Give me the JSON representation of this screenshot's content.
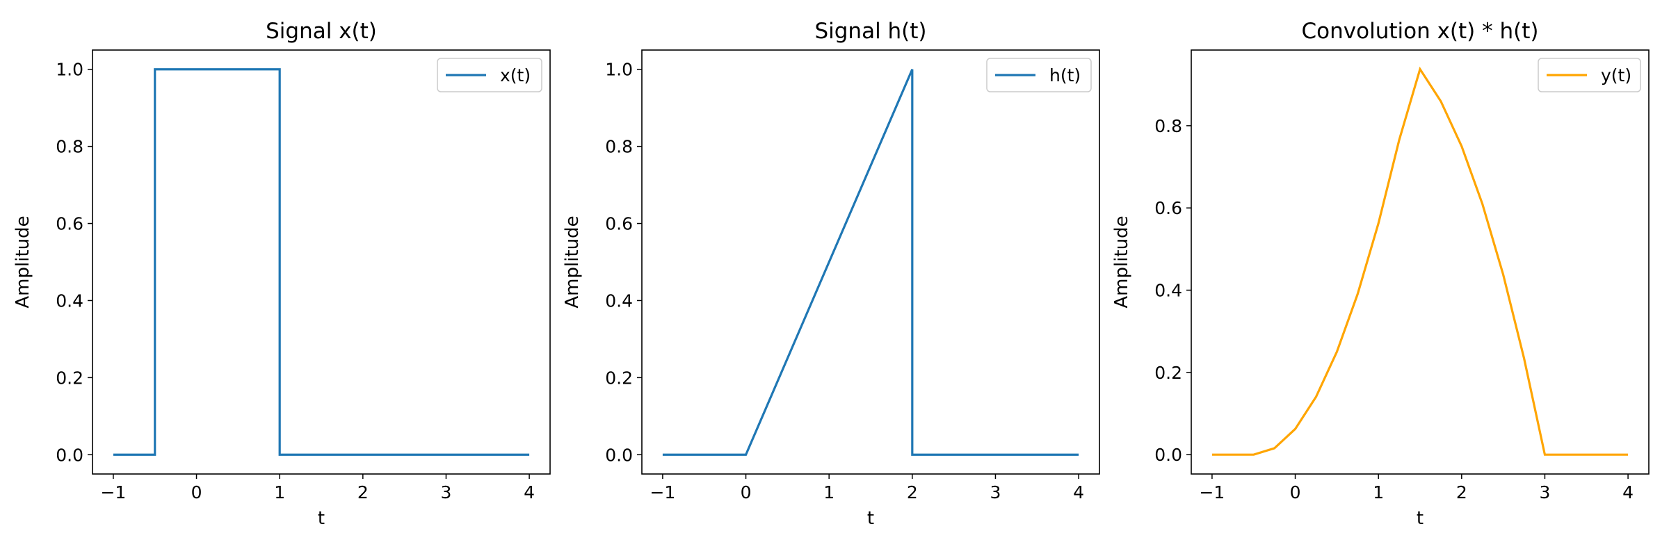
{
  "chart_data": [
    {
      "type": "line",
      "title": "Signal x(t)",
      "xlabel": "t",
      "ylabel": "Amplitude",
      "xlim": [
        -1.25,
        4.25
      ],
      "ylim": [
        -0.05,
        1.05
      ],
      "xticks": [
        -1,
        0,
        1,
        2,
        3,
        4
      ],
      "yticks": [
        0.0,
        0.2,
        0.4,
        0.6,
        0.8,
        1.0
      ],
      "ytick_labels": [
        "0.0",
        "0.2",
        "0.4",
        "0.6",
        "0.8",
        "1.0"
      ],
      "legend_position": "upper right",
      "series": [
        {
          "name": "x(t)",
          "color": "#1f77b4",
          "x": [
            -1,
            -0.5,
            -0.5,
            1,
            1,
            4
          ],
          "y": [
            0,
            0,
            1,
            1,
            0,
            0
          ]
        }
      ]
    },
    {
      "type": "line",
      "title": "Signal h(t)",
      "xlabel": "t",
      "ylabel": "Amplitude",
      "xlim": [
        -1.25,
        4.25
      ],
      "ylim": [
        -0.05,
        1.05
      ],
      "xticks": [
        -1,
        0,
        1,
        2,
        3,
        4
      ],
      "yticks": [
        0.0,
        0.2,
        0.4,
        0.6,
        0.8,
        1.0
      ],
      "ytick_labels": [
        "0.0",
        "0.2",
        "0.4",
        "0.6",
        "0.8",
        "1.0"
      ],
      "legend_position": "upper right",
      "series": [
        {
          "name": "h(t)",
          "color": "#1f77b4",
          "x": [
            -1,
            0,
            2,
            2,
            4
          ],
          "y": [
            0,
            0,
            1,
            0,
            0
          ]
        }
      ]
    },
    {
      "type": "line",
      "title": "Convolution x(t) * h(t)",
      "xlabel": "t",
      "ylabel": "Amplitude",
      "xlim": [
        -1.25,
        4.25
      ],
      "ylim": [
        -0.047,
        0.984
      ],
      "xticks": [
        -1,
        0,
        1,
        2,
        3,
        4
      ],
      "yticks": [
        0.0,
        0.2,
        0.4,
        0.6,
        0.8
      ],
      "ytick_labels": [
        "0.0",
        "0.2",
        "0.4",
        "0.6",
        "0.8"
      ],
      "legend_position": "upper right",
      "series": [
        {
          "name": "y(t)",
          "color": "#ffa500",
          "x": [
            -1,
            -0.5,
            -0.25,
            0,
            0.25,
            0.5,
            0.75,
            1,
            1.25,
            1.5,
            1.75,
            2,
            2.25,
            2.5,
            2.75,
            3,
            3.5,
            4
          ],
          "y": [
            0,
            0,
            0.0156,
            0.0625,
            0.1406,
            0.25,
            0.3906,
            0.5625,
            0.7656,
            0.9375,
            0.8594,
            0.75,
            0.6094,
            0.4375,
            0.2344,
            0,
            0,
            0
          ]
        }
      ]
    }
  ]
}
